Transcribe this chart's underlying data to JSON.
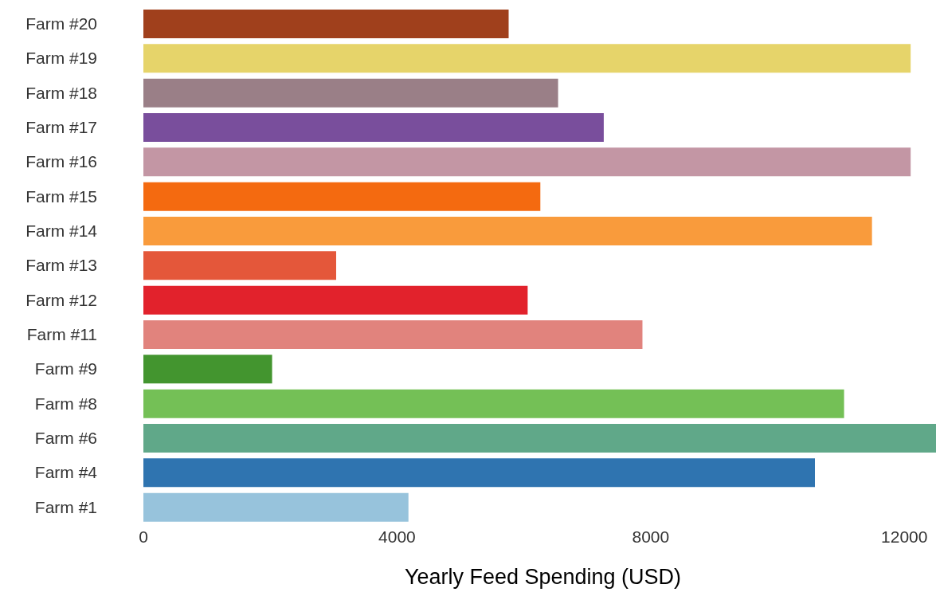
{
  "chart_data": {
    "type": "bar",
    "orientation": "horizontal",
    "xlabel": "Yearly Feed Spending (USD)",
    "categories": [
      "Farm #20",
      "Farm #19",
      "Farm #18",
      "Farm #17",
      "Farm #16",
      "Farm #15",
      "Farm #14",
      "Farm #13",
      "Farm #12",
      "Farm #11",
      "Farm #9",
      "Farm #8",
      "Farm #6",
      "Farm #4",
      "Farm #1"
    ],
    "values": [
      5760,
      12100,
      6540,
      7260,
      12100,
      6260,
      11490,
      3040,
      6060,
      7870,
      2030,
      11050,
      12600,
      10590,
      4180
    ],
    "colors": [
      "#a0401c",
      "#e6d46a",
      "#9a7f87",
      "#794e9c",
      "#c396a4",
      "#f46a10",
      "#f99b3c",
      "#e4573a",
      "#e2222c",
      "#e1837d",
      "#43952f",
      "#74c056",
      "#60a889",
      "#2f74b0",
      "#97c3dc"
    ],
    "xlim": [
      0,
      12600
    ],
    "xticks": [
      0,
      4000,
      8000,
      12000
    ],
    "grid": false,
    "legend": false
  }
}
